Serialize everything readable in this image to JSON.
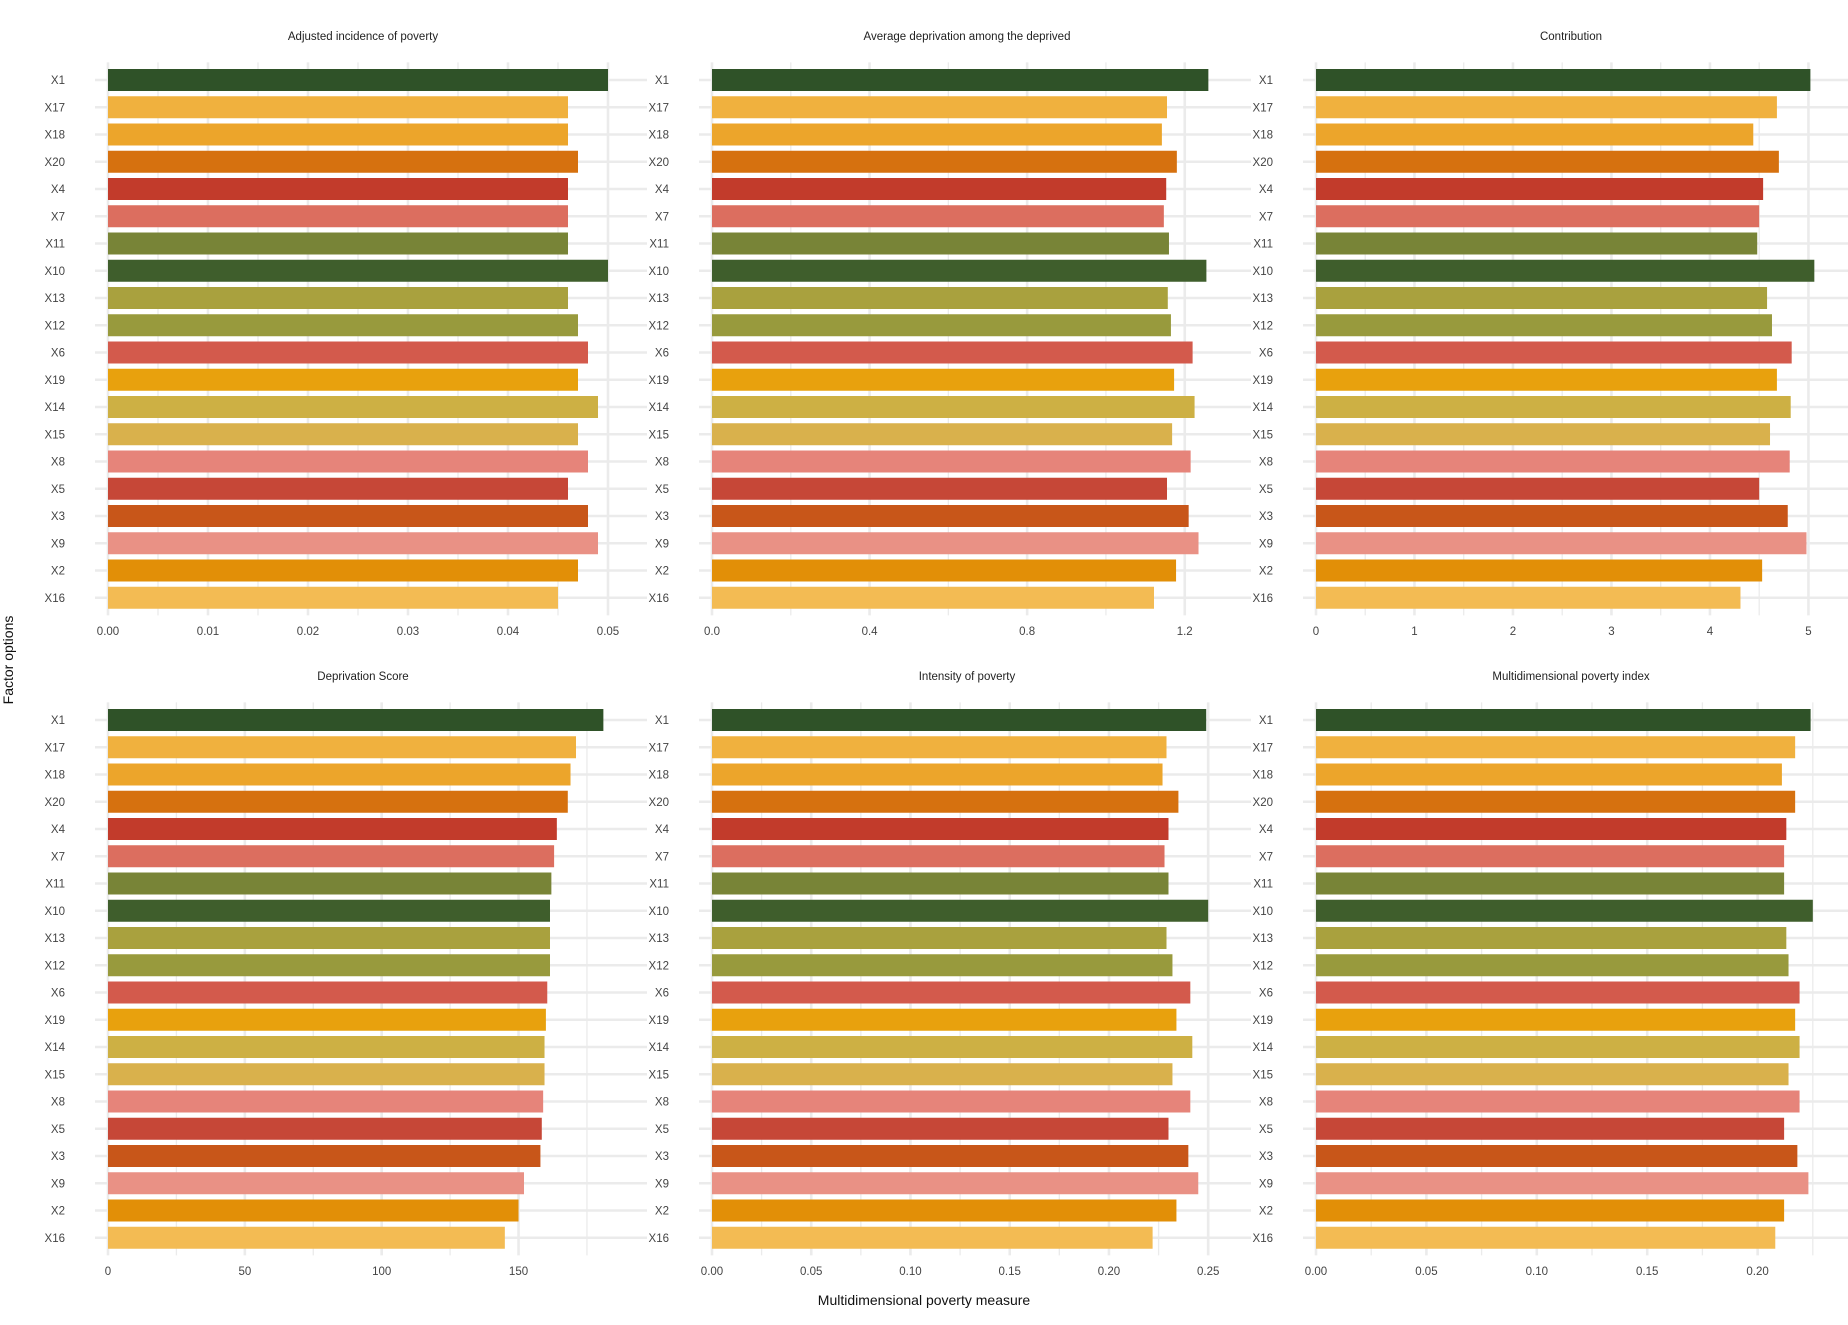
{
  "figure": {
    "ylabel": "Factor options",
    "xlabel": "Multidimensional poverty measure"
  },
  "palette": {
    "X1": "#2f5228",
    "X17": "#f0b13e",
    "X18": "#eca52b",
    "X20": "#d6710f",
    "X4": "#c23b2b",
    "X7": "#dc6e5f",
    "X11": "#788437",
    "X10": "#3f5e2c",
    "X13": "#a9a13e",
    "X12": "#989a3d",
    "X6": "#d35a4c",
    "X19": "#e8a10d",
    "X14": "#cdb044",
    "X15": "#d9b14c",
    "X8": "#e6847a",
    "X5": "#c64737",
    "X3": "#c85619",
    "X9": "#e99185",
    "X2": "#e28f07",
    "X16": "#f3bb53",
    "grid": "#ebebeb"
  },
  "chart_data": [
    {
      "type": "bar",
      "orientation": "horizontal",
      "title": "Adjusted incidence of poverty",
      "categories": [
        "X1",
        "X17",
        "X18",
        "X20",
        "X4",
        "X7",
        "X11",
        "X10",
        "X13",
        "X12",
        "X6",
        "X19",
        "X14",
        "X15",
        "X8",
        "X5",
        "X3",
        "X9",
        "X2",
        "X16"
      ],
      "values": [
        0.05,
        0.046,
        0.046,
        0.047,
        0.046,
        0.046,
        0.046,
        0.05,
        0.046,
        0.047,
        0.048,
        0.047,
        0.049,
        0.047,
        0.048,
        0.046,
        0.048,
        0.049,
        0.047,
        0.045
      ],
      "xlim": [
        0,
        0.052
      ],
      "ticks": [
        0.0,
        0.01,
        0.02,
        0.03,
        0.04,
        0.05
      ],
      "tick_labels": [
        "0.00",
        "0.01",
        "0.02",
        "0.03",
        "0.04",
        "0.05"
      ],
      "grid": true
    },
    {
      "type": "bar",
      "orientation": "horizontal",
      "title": "Average deprivation among the deprived",
      "categories": [
        "X1",
        "X17",
        "X18",
        "X20",
        "X4",
        "X7",
        "X11",
        "X10",
        "X13",
        "X12",
        "X6",
        "X19",
        "X14",
        "X15",
        "X8",
        "X5",
        "X3",
        "X9",
        "X2",
        "X16"
      ],
      "values": [
        1.26,
        1.155,
        1.142,
        1.18,
        1.153,
        1.147,
        1.16,
        1.255,
        1.157,
        1.165,
        1.22,
        1.173,
        1.225,
        1.168,
        1.215,
        1.155,
        1.21,
        1.235,
        1.178,
        1.122
      ],
      "xlim": [
        0,
        1.32
      ],
      "ticks": [
        0.0,
        0.4,
        0.8,
        1.2
      ],
      "tick_labels": [
        "0.0",
        "0.4",
        "0.8",
        "1.2"
      ],
      "grid": true
    },
    {
      "type": "bar",
      "orientation": "horizontal",
      "title": "Contribution",
      "categories": [
        "X1",
        "X17",
        "X18",
        "X20",
        "X4",
        "X7",
        "X11",
        "X10",
        "X13",
        "X12",
        "X6",
        "X19",
        "X14",
        "X15",
        "X8",
        "X5",
        "X3",
        "X9",
        "X2",
        "X16"
      ],
      "values": [
        5.02,
        4.68,
        4.44,
        4.7,
        4.54,
        4.5,
        4.48,
        5.06,
        4.58,
        4.63,
        4.83,
        4.68,
        4.82,
        4.61,
        4.81,
        4.5,
        4.79,
        4.98,
        4.53,
        4.31
      ],
      "xlim": [
        0,
        5.28
      ],
      "ticks": [
        0,
        1,
        2,
        3,
        4,
        5
      ],
      "tick_labels": [
        "0",
        "1",
        "2",
        "3",
        "4",
        "5"
      ],
      "grid": true
    },
    {
      "type": "bar",
      "orientation": "horizontal",
      "title": "Deprivation Score",
      "categories": [
        "X1",
        "X17",
        "X18",
        "X20",
        "X4",
        "X7",
        "X11",
        "X10",
        "X13",
        "X12",
        "X6",
        "X19",
        "X14",
        "X15",
        "X8",
        "X5",
        "X3",
        "X9",
        "X2",
        "X16"
      ],
      "values": [
        181,
        171,
        169,
        168,
        164,
        163,
        162,
        161.5,
        161.5,
        161.5,
        160.5,
        160,
        159.5,
        159.5,
        159,
        158.5,
        158,
        152,
        150,
        145
      ],
      "xlim": [
        0,
        190
      ],
      "ticks": [
        0,
        50,
        100,
        150
      ],
      "tick_labels": [
        "0",
        "50",
        "100",
        "150"
      ],
      "grid": true
    },
    {
      "type": "bar",
      "orientation": "horizontal",
      "title": "Intensity of poverty",
      "categories": [
        "X1",
        "X17",
        "X18",
        "X20",
        "X4",
        "X7",
        "X11",
        "X10",
        "X13",
        "X12",
        "X6",
        "X19",
        "X14",
        "X15",
        "X8",
        "X5",
        "X3",
        "X9",
        "X2",
        "X16"
      ],
      "values": [
        0.249,
        0.229,
        0.227,
        0.235,
        0.23,
        0.228,
        0.23,
        0.25,
        0.229,
        0.232,
        0.241,
        0.234,
        0.242,
        0.232,
        0.241,
        0.23,
        0.24,
        0.245,
        0.234,
        0.222
      ],
      "xlim": [
        0,
        0.262
      ],
      "ticks": [
        0.0,
        0.05,
        0.1,
        0.15,
        0.2,
        0.25
      ],
      "tick_labels": [
        "0.00",
        "0.05",
        "0.10",
        "0.15",
        "0.20",
        "0.25"
      ],
      "grid": true
    },
    {
      "type": "bar",
      "orientation": "horizontal",
      "title": "Multidimensional poverty index",
      "categories": [
        "X1",
        "X17",
        "X18",
        "X20",
        "X4",
        "X7",
        "X11",
        "X10",
        "X13",
        "X12",
        "X6",
        "X19",
        "X14",
        "X15",
        "X8",
        "X5",
        "X3",
        "X9",
        "X2",
        "X16"
      ],
      "values": [
        0.224,
        0.217,
        0.211,
        0.217,
        0.213,
        0.212,
        0.212,
        0.225,
        0.213,
        0.214,
        0.219,
        0.217,
        0.219,
        0.214,
        0.219,
        0.212,
        0.218,
        0.223,
        0.212,
        0.208
      ],
      "xlim": [
        0,
        0.2355
      ],
      "ticks": [
        0.0,
        0.05,
        0.1,
        0.15,
        0.2
      ],
      "tick_labels": [
        "0.00",
        "0.05",
        "0.10",
        "0.15",
        "0.20"
      ],
      "grid": true
    }
  ]
}
